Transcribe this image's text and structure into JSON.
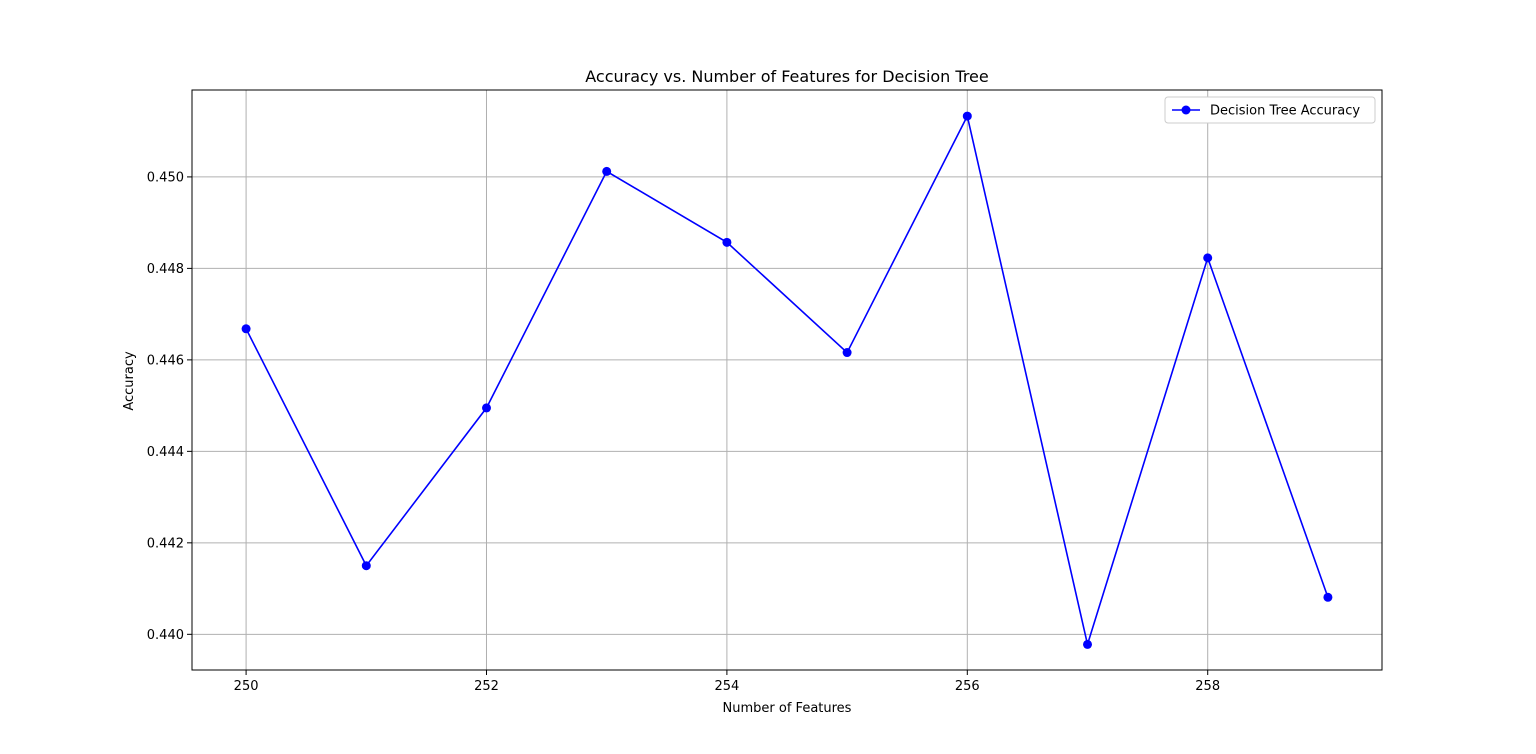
{
  "chart_data": {
    "type": "line",
    "title": "Accuracy vs. Number of Features for Decision Tree",
    "xlabel": "Number of Features",
    "ylabel": "Accuracy",
    "x": [
      250,
      251,
      252,
      253,
      254,
      255,
      256,
      257,
      258,
      259
    ],
    "series": [
      {
        "name": "Decision Tree Accuracy",
        "values": [
          0.44668,
          0.4415,
          0.44495,
          0.45012,
          0.44857,
          0.44616,
          0.45133,
          0.43978,
          0.44823,
          0.44081
        ],
        "color": "#0000ff",
        "marker": "circle"
      }
    ],
    "xlim": [
      249.55,
      259.45
    ],
    "ylim": [
      0.43922,
      0.4519
    ],
    "xticks": [
      250,
      252,
      254,
      256,
      258
    ],
    "xtick_labels": [
      "250",
      "252",
      "254",
      "256",
      "258"
    ],
    "yticks": [
      0.44,
      0.442,
      0.444,
      0.446,
      0.448,
      0.45
    ],
    "ytick_labels": [
      "0.440",
      "0.442",
      "0.444",
      "0.446",
      "0.448",
      "0.450"
    ],
    "grid": true,
    "legend_position": "top-right"
  }
}
